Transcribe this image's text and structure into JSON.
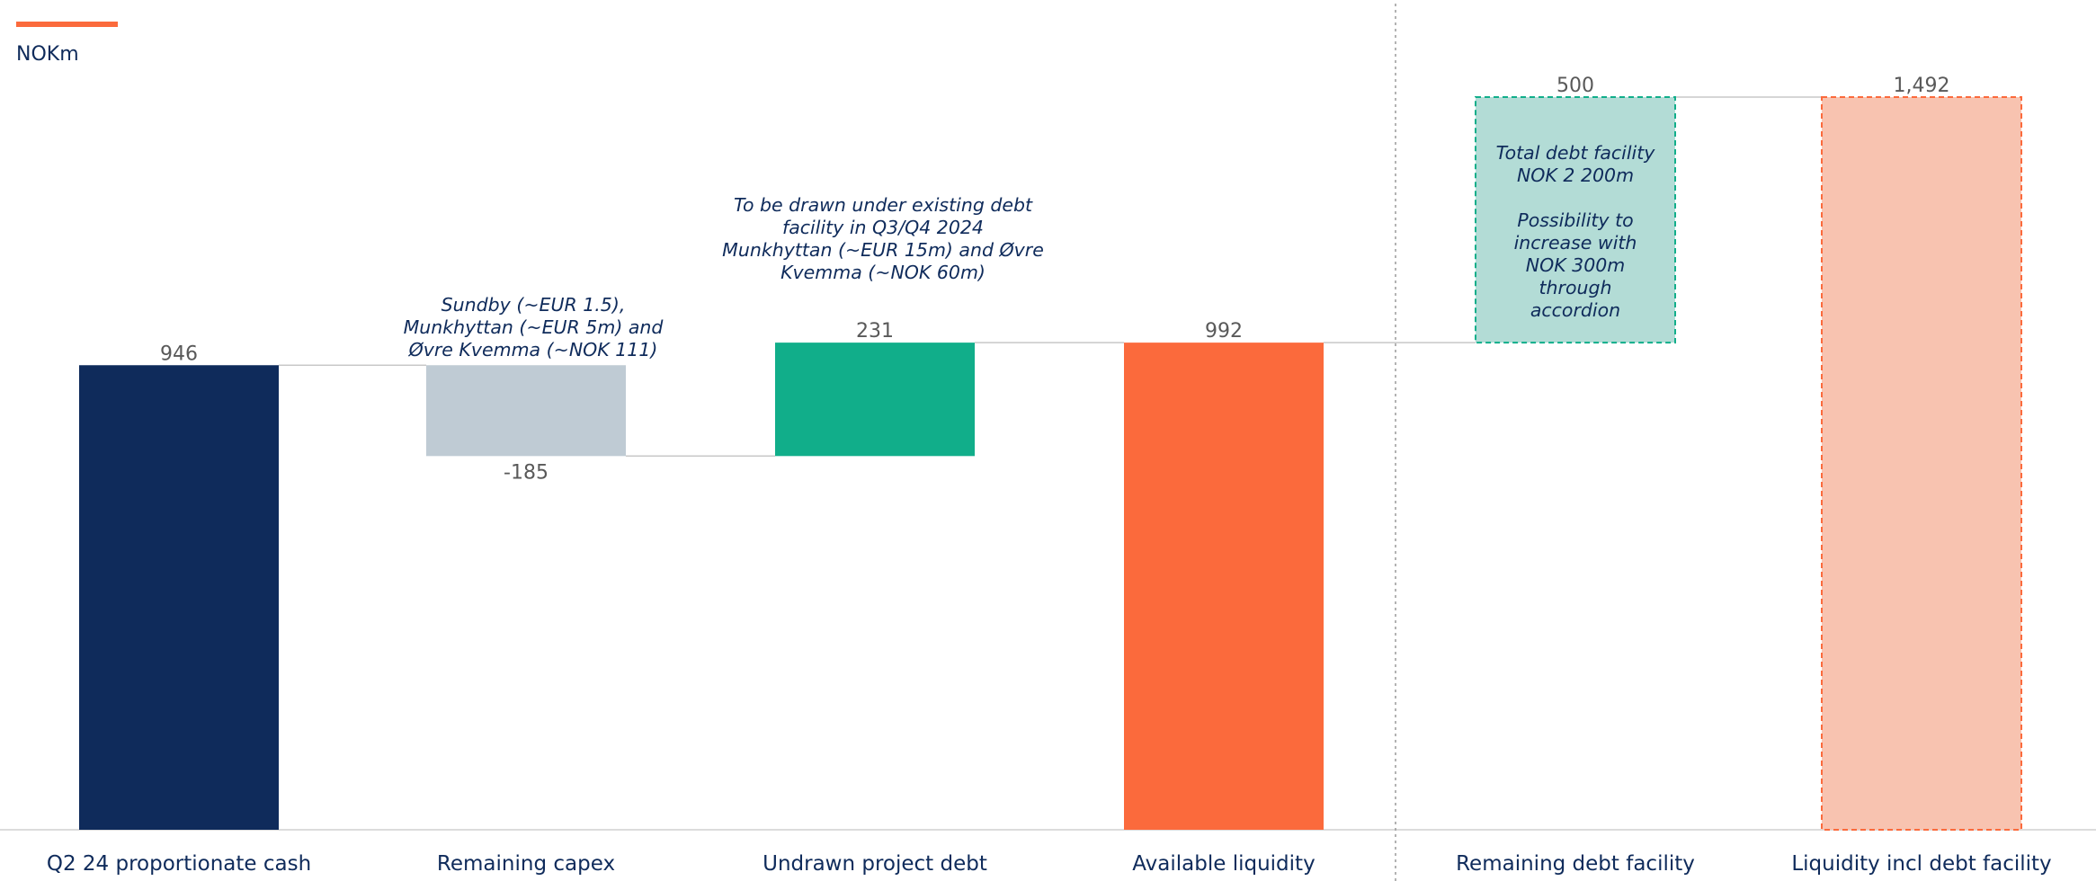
{
  "unit_label": "NOKm",
  "colors": {
    "accent": "#fb6a3c",
    "navy": "#0f2b5b",
    "capex": "#bfcbd4",
    "undrawn": "#11ae8a",
    "available": "#fb6a3c",
    "facility_fill": "#b3dcd6",
    "facility_border": "#11ae8a",
    "liquidity_fill": "#f8c3b0",
    "liquidity_border": "#fb6a3c",
    "connector": "#c8c8c8",
    "value_text": "#595959"
  },
  "chart_data": {
    "type": "bar",
    "subtype": "waterfall",
    "unit": "NOKm",
    "categories": [
      "Q2 24 proportionate cash",
      "Remaining capex",
      "Undrawn project debt",
      "Available liquidity",
      "Remaining debt facility",
      "Liquidity incl debt facility"
    ],
    "values": [
      946,
      -185,
      231,
      992,
      500,
      1492
    ],
    "value_labels": [
      "946",
      "-185",
      "231",
      "992",
      "500",
      "1,492"
    ],
    "kinds": [
      "total",
      "delta",
      "delta",
      "total",
      "delta",
      "total"
    ],
    "ylim": [
      0,
      1492
    ],
    "grid": false,
    "legend": "none",
    "annotations": [
      {
        "target": "Remaining capex",
        "lines": [
          "Sundby (~EUR 1.5),",
          "Munkhyttan (~EUR 5m) and",
          "Øvre Kvemma  (~NOK 111)"
        ]
      },
      {
        "target": "Undrawn project debt",
        "lines": [
          "To be drawn  under existing debt",
          "facility in Q3/Q4 2024",
          "Munkhyttan (~EUR 15m) and Øvre",
          "Kvemma (~NOK 60m)"
        ]
      },
      {
        "target": "Remaining debt facility",
        "lines": [
          "Total debt facility",
          "NOK 2 200m",
          "",
          "Possibility to",
          "increase with",
          "NOK 300m",
          "through",
          "accordion"
        ]
      }
    ]
  }
}
